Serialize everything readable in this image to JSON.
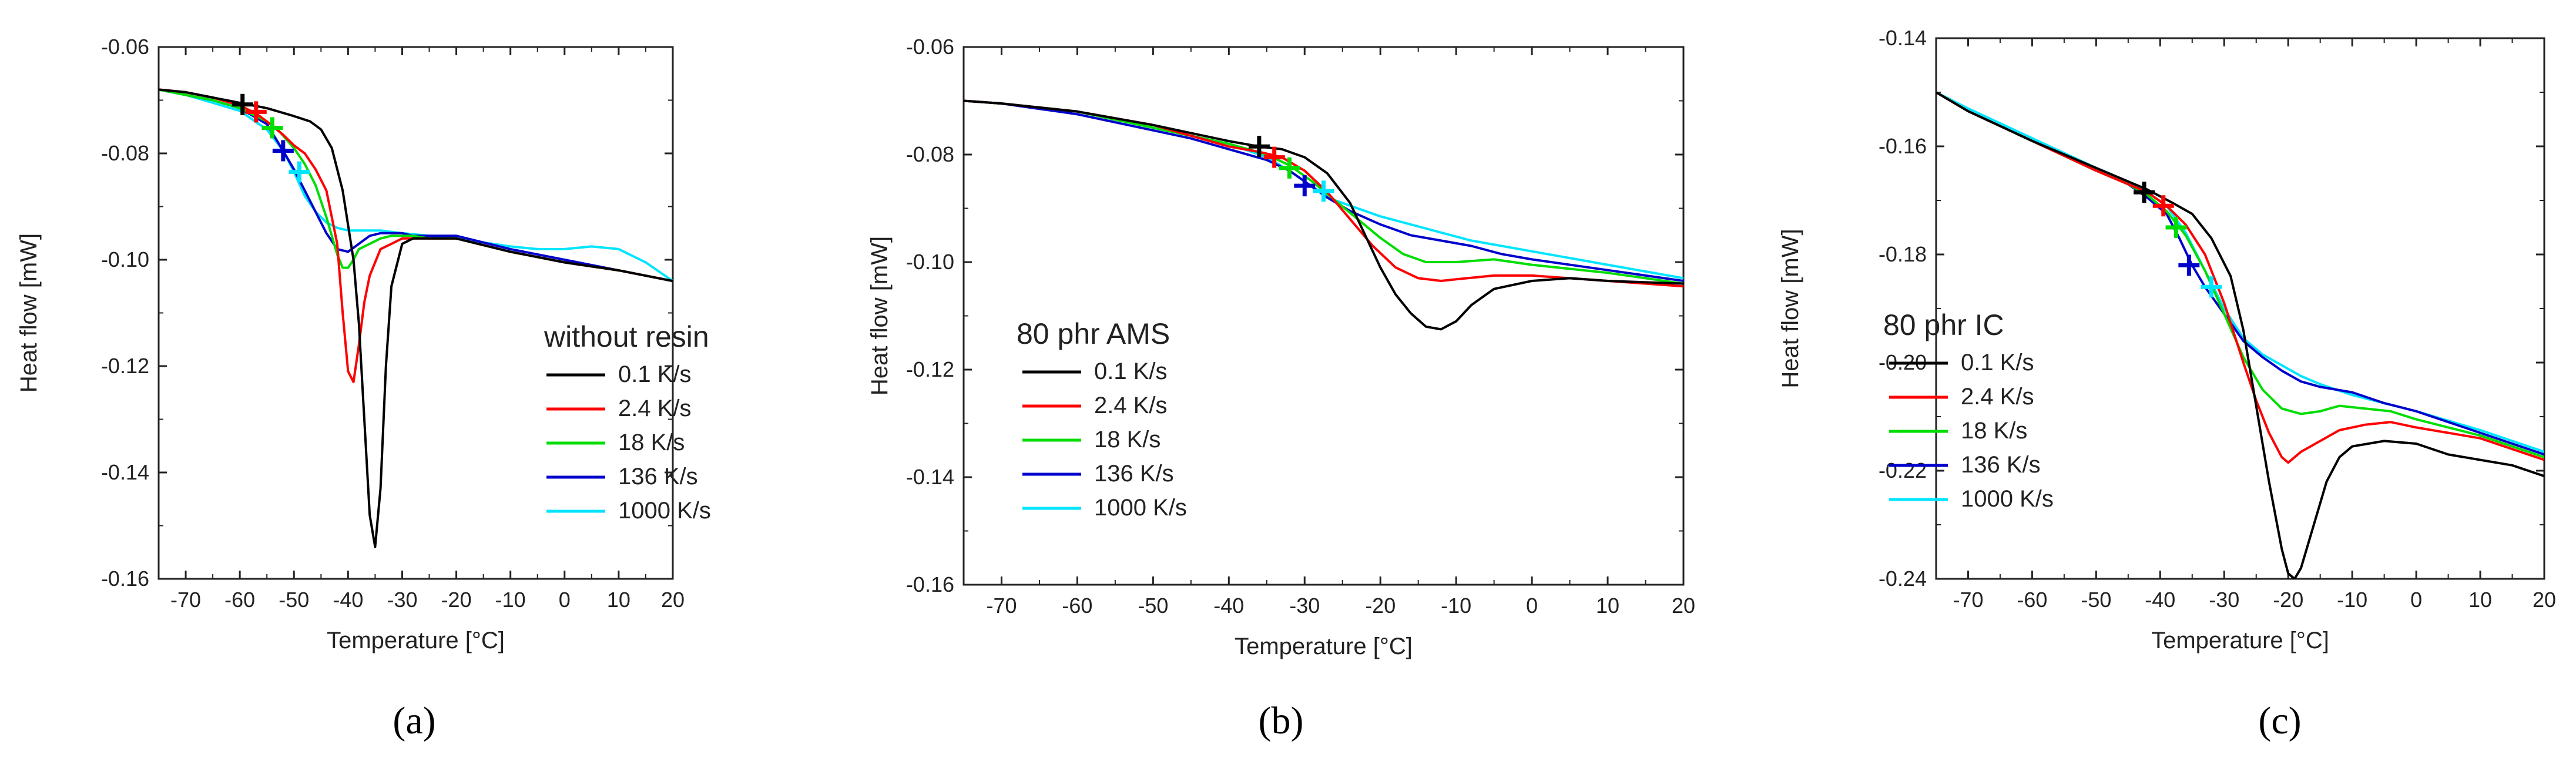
{
  "figure": {
    "panels": [
      {
        "id": "a",
        "caption": "(a)",
        "legend_title": "without resin"
      },
      {
        "id": "b",
        "caption": "(b)",
        "legend_title": "80 phr AMS"
      },
      {
        "id": "c",
        "caption": "(c)",
        "legend_title": "80 phr IC"
      }
    ]
  },
  "chart_data": [
    {
      "type": "line",
      "panel": "a",
      "title": "without resin",
      "xlabel": "Temperature [°C]",
      "ylabel": "Heat flow [mW]",
      "xlim": [
        -75,
        20
      ],
      "ylim": [
        -0.16,
        -0.06
      ],
      "xticks": [
        -70,
        -60,
        -50,
        -40,
        -30,
        -20,
        -10,
        0,
        10,
        20
      ],
      "yticks": [
        -0.16,
        -0.14,
        -0.12,
        -0.1,
        -0.08,
        -0.06
      ],
      "ytick_labels": [
        "-0.16",
        "-0.14",
        "-0.12",
        "-0.10",
        "-0.08",
        "-0.06"
      ],
      "legend_position": "center-right",
      "series": [
        {
          "name": "0.1 K/s",
          "color": "#000000",
          "x": [
            -75,
            -70,
            -65,
            -60,
            -55,
            -50,
            -47,
            -45,
            -43,
            -41,
            -39,
            -38,
            -37,
            -36,
            -35,
            -34,
            -33,
            -32,
            -30,
            -28,
            -25,
            -20,
            -10,
            0,
            10,
            20
          ],
          "y": [
            -0.068,
            -0.0685,
            -0.0695,
            -0.0705,
            -0.0715,
            -0.073,
            -0.074,
            -0.0755,
            -0.079,
            -0.087,
            -0.1,
            -0.112,
            -0.13,
            -0.148,
            -0.154,
            -0.143,
            -0.12,
            -0.105,
            -0.097,
            -0.096,
            -0.096,
            -0.096,
            -0.0985,
            -0.1005,
            -0.102,
            -0.104
          ],
          "marker": [
            -59.5,
            -0.0708
          ]
        },
        {
          "name": "2.4 K/s",
          "color": "#ff0000",
          "x": [
            -75,
            -70,
            -65,
            -60,
            -57,
            -55,
            -52,
            -50,
            -48,
            -46,
            -44,
            -42,
            -41,
            -40,
            -39,
            -38,
            -37,
            -36,
            -34,
            -32,
            -30,
            -28,
            -25,
            -20,
            -10,
            0,
            10,
            20
          ],
          "y": [
            -0.068,
            -0.0685,
            -0.0695,
            -0.071,
            -0.0725,
            -0.074,
            -0.0765,
            -0.0785,
            -0.08,
            -0.083,
            -0.087,
            -0.097,
            -0.11,
            -0.121,
            -0.123,
            -0.116,
            -0.108,
            -0.103,
            -0.098,
            -0.097,
            -0.096,
            -0.096,
            -0.096,
            -0.096,
            -0.0985,
            -0.1005,
            -0.102,
            -0.104
          ],
          "marker": [
            -57.0,
            -0.0722
          ]
        },
        {
          "name": "18 K/s",
          "color": "#00dd00",
          "x": [
            -75,
            -70,
            -65,
            -60,
            -55,
            -53,
            -50,
            -48,
            -46,
            -44,
            -42,
            -41,
            -40,
            -39,
            -38,
            -36,
            -34,
            -32,
            -30,
            -28,
            -25,
            -20,
            -10,
            0,
            10,
            20
          ],
          "y": [
            -0.068,
            -0.069,
            -0.07,
            -0.0715,
            -0.074,
            -0.0755,
            -0.079,
            -0.082,
            -0.086,
            -0.092,
            -0.099,
            -0.1015,
            -0.1015,
            -0.1,
            -0.098,
            -0.097,
            -0.096,
            -0.0955,
            -0.0955,
            -0.0955,
            -0.096,
            -0.096,
            -0.0985,
            -0.1005,
            -0.102,
            -0.104
          ],
          "marker": [
            -54.0,
            -0.0752
          ]
        },
        {
          "name": "136 K/s",
          "color": "#0000cc",
          "x": [
            -75,
            -70,
            -65,
            -60,
            -55,
            -52,
            -50,
            -48,
            -46,
            -44,
            -42,
            -40,
            -38,
            -36,
            -34,
            -32,
            -30,
            -28,
            -25,
            -20,
            -10,
            0,
            10,
            20
          ],
          "y": [
            -0.068,
            -0.069,
            -0.07,
            -0.0715,
            -0.0745,
            -0.0795,
            -0.083,
            -0.087,
            -0.091,
            -0.095,
            -0.098,
            -0.0985,
            -0.097,
            -0.0955,
            -0.095,
            -0.095,
            -0.095,
            -0.0955,
            -0.0955,
            -0.0955,
            -0.098,
            -0.1,
            -0.102,
            -0.104
          ],
          "marker": [
            -52.0,
            -0.0795
          ]
        },
        {
          "name": "1000 K/s",
          "color": "#00e5ff",
          "x": [
            -75,
            -70,
            -65,
            -60,
            -55,
            -52,
            -50,
            -48,
            -46,
            -44,
            -42,
            -40,
            -37,
            -34,
            -30,
            -25,
            -20,
            -10,
            -5,
            0,
            5,
            10,
            15,
            20
          ],
          "y": [
            -0.068,
            -0.069,
            -0.0705,
            -0.072,
            -0.0755,
            -0.0795,
            -0.0835,
            -0.088,
            -0.091,
            -0.093,
            -0.094,
            -0.0945,
            -0.0945,
            -0.0945,
            -0.095,
            -0.0955,
            -0.096,
            -0.0975,
            -0.098,
            -0.098,
            -0.0975,
            -0.098,
            -0.1005,
            -0.104
          ],
          "marker": [
            -49.0,
            -0.0835
          ]
        }
      ]
    },
    {
      "type": "line",
      "panel": "b",
      "title": "80 phr AMS",
      "xlabel": "Temperature [°C]",
      "ylabel": "Heat flow [mW]",
      "xlim": [
        -75,
        20
      ],
      "ylim": [
        -0.16,
        -0.06
      ],
      "xticks": [
        -70,
        -60,
        -50,
        -40,
        -30,
        -20,
        -10,
        0,
        10,
        20
      ],
      "yticks": [
        -0.16,
        -0.14,
        -0.12,
        -0.1,
        -0.08,
        -0.06
      ],
      "ytick_labels": [
        "-0.16",
        "-0.14",
        "-0.12",
        "-0.10",
        "-0.08",
        "-0.06"
      ],
      "legend_position": "center-left",
      "series": [
        {
          "name": "0.1 K/s",
          "color": "#000000",
          "x": [
            -75,
            -70,
            -60,
            -50,
            -45,
            -40,
            -36,
            -33,
            -30,
            -27,
            -24,
            -22,
            -20,
            -18,
            -16,
            -14,
            -12,
            -10,
            -8,
            -5,
            0,
            5,
            10,
            20
          ],
          "y": [
            -0.07,
            -0.0705,
            -0.072,
            -0.0745,
            -0.076,
            -0.0775,
            -0.0785,
            -0.079,
            -0.0805,
            -0.0835,
            -0.089,
            -0.095,
            -0.101,
            -0.106,
            -0.1095,
            -0.112,
            -0.1125,
            -0.111,
            -0.108,
            -0.105,
            -0.1035,
            -0.103,
            -0.1035,
            -0.104
          ],
          "marker": [
            -36.0,
            -0.0785
          ]
        },
        {
          "name": "2.4 K/s",
          "color": "#ff0000",
          "x": [
            -75,
            -70,
            -60,
            -50,
            -45,
            -40,
            -36,
            -33,
            -30,
            -27,
            -24,
            -21,
            -18,
            -15,
            -12,
            -10,
            -5,
            0,
            10,
            20
          ],
          "y": [
            -0.07,
            -0.0705,
            -0.072,
            -0.0745,
            -0.0765,
            -0.0785,
            -0.0795,
            -0.0805,
            -0.083,
            -0.087,
            -0.092,
            -0.097,
            -0.101,
            -0.103,
            -0.1035,
            -0.1032,
            -0.1025,
            -0.1025,
            -0.1035,
            -0.1045
          ],
          "marker": [
            -34.0,
            -0.0805
          ]
        },
        {
          "name": "18 K/s",
          "color": "#00dd00",
          "x": [
            -75,
            -70,
            -60,
            -50,
            -45,
            -40,
            -35,
            -32,
            -29,
            -26,
            -23,
            -20,
            -17,
            -14,
            -10,
            -5,
            0,
            10,
            20
          ],
          "y": [
            -0.07,
            -0.0705,
            -0.072,
            -0.075,
            -0.0765,
            -0.078,
            -0.08,
            -0.082,
            -0.085,
            -0.0885,
            -0.092,
            -0.0955,
            -0.0985,
            -0.1,
            -0.1,
            -0.0995,
            -0.1005,
            -0.102,
            -0.104
          ],
          "marker": [
            -32.0,
            -0.0825
          ]
        },
        {
          "name": "136 K/s",
          "color": "#0000cc",
          "x": [
            -75,
            -70,
            -60,
            -50,
            -45,
            -40,
            -35,
            -32,
            -30,
            -27,
            -24,
            -20,
            -16,
            -12,
            -8,
            -4,
            0,
            10,
            20
          ],
          "y": [
            -0.07,
            -0.0705,
            -0.0725,
            -0.0755,
            -0.077,
            -0.079,
            -0.081,
            -0.083,
            -0.085,
            -0.088,
            -0.0905,
            -0.093,
            -0.095,
            -0.096,
            -0.097,
            -0.0985,
            -0.0995,
            -0.1015,
            -0.1035
          ],
          "marker": [
            -30.0,
            -0.0858
          ]
        },
        {
          "name": "1000 K/s",
          "color": "#00e5ff",
          "x": [
            -75,
            -70,
            -60,
            -50,
            -45,
            -40,
            -35,
            -32,
            -29,
            -26,
            -23,
            -20,
            -16,
            -12,
            -8,
            -4,
            0,
            10,
            20
          ],
          "y": [
            -0.07,
            -0.0705,
            -0.072,
            -0.075,
            -0.0765,
            -0.078,
            -0.0805,
            -0.083,
            -0.086,
            -0.0885,
            -0.09,
            -0.0915,
            -0.093,
            -0.0945,
            -0.096,
            -0.097,
            -0.098,
            -0.1005,
            -0.103
          ],
          "marker": [
            -27.5,
            -0.0868
          ]
        }
      ]
    },
    {
      "type": "line",
      "panel": "c",
      "title": "80 phr IC",
      "xlabel": "Temperature [°C]",
      "ylabel": "Heat flow [mW]",
      "xlim": [
        -75,
        20
      ],
      "ylim": [
        -0.24,
        -0.14
      ],
      "xticks": [
        -70,
        -60,
        -50,
        -40,
        -30,
        -20,
        -10,
        0,
        10,
        20
      ],
      "yticks": [
        -0.24,
        -0.22,
        -0.2,
        -0.18,
        -0.16,
        -0.14
      ],
      "ytick_labels": [
        "-0.24",
        "-0.22",
        "-0.20",
        "-0.18",
        "-0.16",
        "-0.14"
      ],
      "legend_position": "center-left",
      "series": [
        {
          "name": "0.1  K/s",
          "color": "#000000",
          "x": [
            -75,
            -70,
            -60,
            -50,
            -45,
            -42,
            -38,
            -35,
            -32,
            -29,
            -27,
            -25,
            -23,
            -21,
            -20,
            -19,
            -18,
            -16,
            -14,
            -12,
            -10,
            -5,
            0,
            5,
            10,
            15,
            20
          ],
          "y": [
            -0.15,
            -0.1535,
            -0.159,
            -0.164,
            -0.1665,
            -0.168,
            -0.1705,
            -0.1725,
            -0.177,
            -0.184,
            -0.194,
            -0.208,
            -0.222,
            -0.2345,
            -0.239,
            -0.24,
            -0.238,
            -0.23,
            -0.222,
            -0.2175,
            -0.2155,
            -0.2145,
            -0.215,
            -0.217,
            -0.218,
            -0.219,
            -0.221
          ],
          "marker": [
            -42.5,
            -0.1685
          ]
        },
        {
          "name": "2.4 K/s",
          "color": "#ff0000",
          "x": [
            -75,
            -70,
            -60,
            -50,
            -45,
            -42,
            -39,
            -36,
            -33,
            -30,
            -27,
            -25,
            -23,
            -21,
            -20,
            -18,
            -15,
            -12,
            -8,
            -4,
            0,
            10,
            20
          ],
          "y": [
            -0.15,
            -0.1535,
            -0.159,
            -0.1645,
            -0.167,
            -0.1685,
            -0.171,
            -0.1745,
            -0.18,
            -0.189,
            -0.2,
            -0.207,
            -0.213,
            -0.2175,
            -0.2185,
            -0.2165,
            -0.2145,
            -0.2125,
            -0.2115,
            -0.211,
            -0.212,
            -0.214,
            -0.218
          ],
          "marker": [
            -39.5,
            -0.171
          ]
        },
        {
          "name": "18 K/s",
          "color": "#00dd00",
          "x": [
            -75,
            -70,
            -60,
            -50,
            -45,
            -42,
            -39,
            -36,
            -33,
            -30,
            -27,
            -24,
            -21,
            -18,
            -15,
            -12,
            -8,
            -4,
            0,
            10,
            20
          ],
          "y": [
            -0.15,
            -0.1535,
            -0.159,
            -0.1645,
            -0.167,
            -0.169,
            -0.172,
            -0.1765,
            -0.183,
            -0.191,
            -0.199,
            -0.205,
            -0.2085,
            -0.2095,
            -0.209,
            -0.208,
            -0.2085,
            -0.209,
            -0.2105,
            -0.2135,
            -0.2175
          ],
          "marker": [
            -37.5,
            -0.175
          ]
        },
        {
          "name": "136 K/s",
          "color": "#0000cc",
          "x": [
            -75,
            -70,
            -60,
            -50,
            -45,
            -42,
            -39,
            -37,
            -35,
            -33,
            -30,
            -27,
            -24,
            -21,
            -18,
            -15,
            -10,
            -5,
            0,
            10,
            20
          ],
          "y": [
            -0.15,
            -0.1535,
            -0.159,
            -0.1645,
            -0.167,
            -0.1695,
            -0.1725,
            -0.177,
            -0.182,
            -0.186,
            -0.191,
            -0.196,
            -0.199,
            -0.2015,
            -0.2035,
            -0.2045,
            -0.2055,
            -0.2075,
            -0.209,
            -0.213,
            -0.217
          ],
          "marker": [
            -35.5,
            -0.182
          ]
        },
        {
          "name": "1000 K/s",
          "color": "#00e5ff",
          "x": [
            -75,
            -70,
            -60,
            -50,
            -45,
            -42,
            -39,
            -36,
            -33,
            -30,
            -27,
            -24,
            -21,
            -18,
            -15,
            -10,
            -5,
            0,
            10,
            20
          ],
          "y": [
            -0.15,
            -0.153,
            -0.1585,
            -0.164,
            -0.1665,
            -0.1685,
            -0.171,
            -0.176,
            -0.183,
            -0.19,
            -0.1955,
            -0.1985,
            -0.2005,
            -0.2025,
            -0.204,
            -0.206,
            -0.2075,
            -0.209,
            -0.2125,
            -0.2165
          ],
          "marker": [
            -32.0,
            -0.186
          ]
        }
      ]
    }
  ]
}
